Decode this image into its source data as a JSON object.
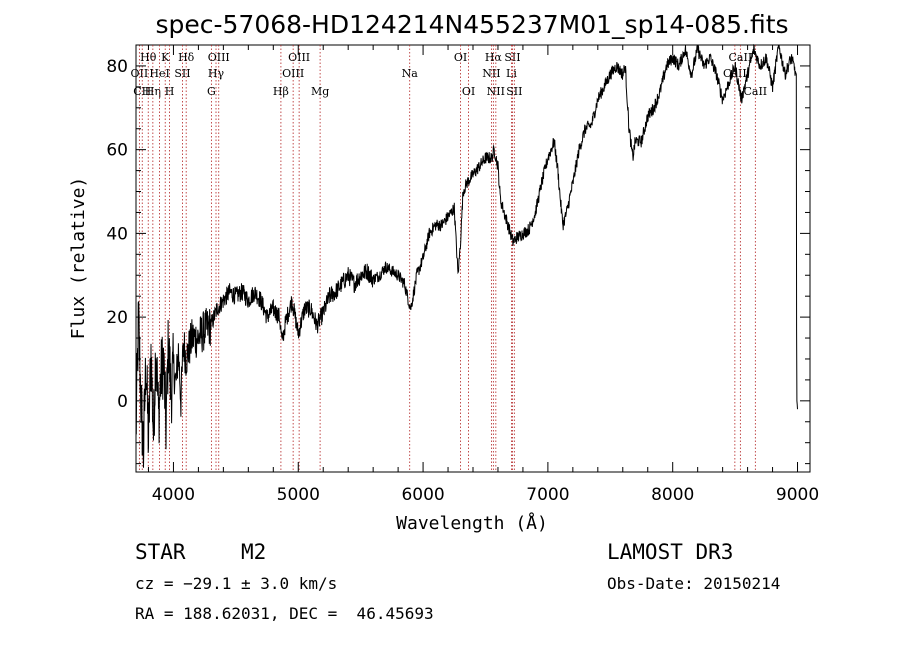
{
  "chart_data": {
    "type": "line",
    "title": "spec-57068-HD124214N455237M01_sp14-085.fits",
    "xlabel": "Wavelength (Å)",
    "ylabel": "Flux (relative)",
    "xlim": [
      3700,
      9100
    ],
    "ylim": [
      -17,
      85
    ],
    "xticks": [
      4000,
      5000,
      6000,
      7000,
      8000,
      9000
    ],
    "yticks": [
      0,
      20,
      40,
      60,
      80
    ],
    "grid": false,
    "series": [
      {
        "x": [
          3700,
          3720,
          3740,
          3760,
          3780,
          3800,
          3820,
          3840,
          3860,
          3880,
          3900,
          3920,
          3940,
          3960,
          3980,
          4000,
          4020,
          4040,
          4060,
          4080,
          4100,
          4150,
          4200,
          4250,
          4300,
          4350,
          4400,
          4450,
          4500,
          4550,
          4600,
          4650,
          4700,
          4750,
          4800,
          4850,
          4870,
          4900,
          4950,
          5000,
          5050,
          5100,
          5150,
          5200,
          5250,
          5300,
          5350,
          5400,
          5450,
          5500,
          5550,
          5600,
          5650,
          5700,
          5750,
          5800,
          5850,
          5900,
          5920,
          5950,
          6000,
          6050,
          6100,
          6150,
          6200,
          6250,
          6280,
          6300,
          6320,
          6350,
          6400,
          6450,
          6500,
          6550,
          6570,
          6600,
          6620,
          6650,
          6700,
          6720,
          6750,
          6800,
          6850,
          6900,
          6950,
          7000,
          7050,
          7080,
          7100,
          7120,
          7150,
          7200,
          7250,
          7300,
          7350,
          7400,
          7450,
          7500,
          7550,
          7600,
          7620,
          7650,
          7680,
          7700,
          7750,
          7800,
          7850,
          7900,
          7950,
          8000,
          8050,
          8100,
          8150,
          8200,
          8250,
          8300,
          8350,
          8400,
          8450,
          8500,
          8550,
          8600,
          8650,
          8700,
          8750,
          8800,
          8850,
          8900,
          8950,
          8990,
          8992,
          8995,
          8998,
          9000
        ],
        "y": [
          -8,
          20,
          0,
          -12,
          10,
          -10,
          12,
          -8,
          14,
          -4,
          6,
          10,
          -6,
          14,
          2,
          8,
          4,
          12,
          0,
          14,
          10,
          15,
          15,
          17,
          18,
          22,
          24,
          26,
          25,
          26,
          24,
          26,
          24,
          20,
          22,
          20,
          14,
          19,
          24,
          16,
          22,
          22,
          18,
          21,
          25,
          26,
          28,
          30,
          28,
          30,
          31,
          29,
          30,
          32,
          31,
          30,
          28,
          22,
          25,
          30,
          34,
          40,
          42,
          42,
          44,
          46,
          30,
          38,
          50,
          52,
          54,
          56,
          58,
          58,
          60,
          56,
          48,
          45,
          40,
          38,
          39,
          40,
          41,
          45,
          52,
          58,
          62,
          55,
          48,
          42,
          45,
          52,
          60,
          65,
          66,
          72,
          75,
          78,
          80,
          78,
          80,
          65,
          58,
          62,
          62,
          68,
          70,
          74,
          80,
          82,
          80,
          84,
          78,
          84,
          80,
          82,
          78,
          72,
          76,
          80,
          72,
          78,
          84,
          80,
          82,
          75,
          85,
          78,
          82,
          78,
          20,
          0,
          -1,
          -2
        ]
      }
    ],
    "lines": [
      {
        "wl": 3727,
        "labels": [
          "OII"
        ],
        "row": 2
      },
      {
        "wl": 3750,
        "labels": [
          "CH"
        ],
        "row": 3
      },
      {
        "wl": 3798,
        "labels": [
          "Hθ"
        ],
        "row": 1
      },
      {
        "wl": 3835,
        "labels": [
          "Hη"
        ],
        "row": 3
      },
      {
        "wl": 3889,
        "labels": [
          "HeI"
        ],
        "row": 2
      },
      {
        "wl": 3934,
        "labels": [
          "K"
        ],
        "row": 1
      },
      {
        "wl": 3969,
        "labels": [
          "H"
        ],
        "row": 3
      },
      {
        "wl": 4072,
        "labels": [
          "SII"
        ],
        "row": 2
      },
      {
        "wl": 4102,
        "labels": [
          "Hδ"
        ],
        "row": 1
      },
      {
        "wl": 4304,
        "labels": [
          "G"
        ],
        "row": 3
      },
      {
        "wl": 4341,
        "labels": [
          "Hγ"
        ],
        "row": 2
      },
      {
        "wl": 4363,
        "labels": [
          "OIII"
        ],
        "row": 1
      },
      {
        "wl": 4861,
        "labels": [
          "Hβ"
        ],
        "row": 3
      },
      {
        "wl": 4959,
        "labels": [
          "OIII"
        ],
        "row": 2
      },
      {
        "wl": 5007,
        "labels": [
          "OIII"
        ],
        "row": 1
      },
      {
        "wl": 5175,
        "labels": [
          "Mg"
        ],
        "row": 3
      },
      {
        "wl": 5893,
        "labels": [
          "Na"
        ],
        "row": 2
      },
      {
        "wl": 6300,
        "labels": [
          "OI"
        ],
        "row": 1
      },
      {
        "wl": 6364,
        "labels": [
          "OI"
        ],
        "row": 3
      },
      {
        "wl": 6548,
        "labels": [
          "NII"
        ],
        "row": 2
      },
      {
        "wl": 6563,
        "labels": [
          "Hα"
        ],
        "row": 1
      },
      {
        "wl": 6583,
        "labels": [
          "NII"
        ],
        "row": 3
      },
      {
        "wl": 6708,
        "labels": [
          "Li"
        ],
        "row": 2
      },
      {
        "wl": 6716,
        "labels": [
          "SII"
        ],
        "row": 1
      },
      {
        "wl": 6731,
        "labels": [
          "SII"
        ],
        "row": 3
      },
      {
        "wl": 8498,
        "labels": [
          "CaII"
        ],
        "row": 2
      },
      {
        "wl": 8542,
        "labels": [
          "CaII"
        ],
        "row": 1
      },
      {
        "wl": 8662,
        "labels": [
          "CaII"
        ],
        "row": 3
      }
    ]
  },
  "info": {
    "obj_class": "STAR",
    "subclass": "M2",
    "survey": "LAMOST DR3",
    "cz": "cz = −29.1 ± 3.0 km/s",
    "obs_date": "Obs-Date: 20150214",
    "coords": "RA = 188.62031, DEC =  46.45693"
  }
}
